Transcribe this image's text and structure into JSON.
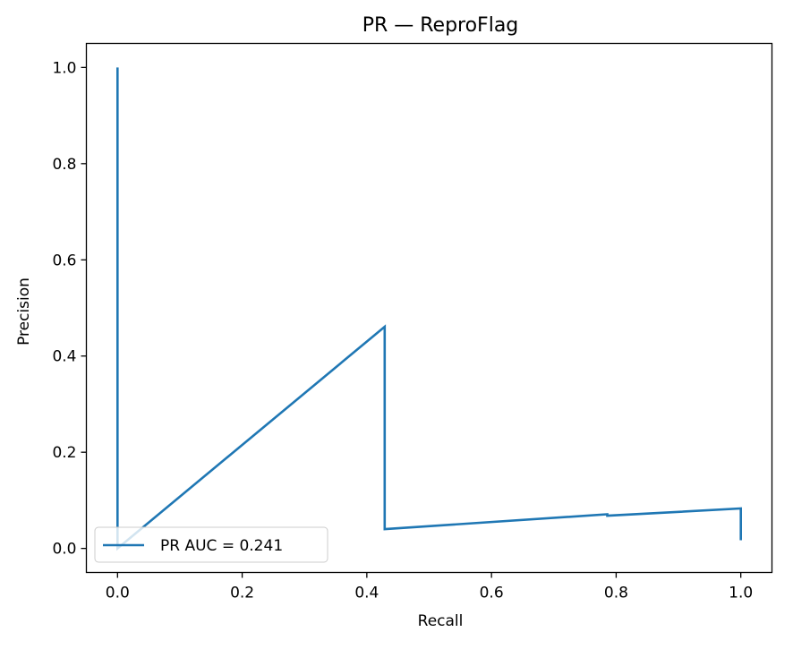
{
  "chart_data": {
    "type": "line",
    "title": "PR — ReproFlag",
    "xlabel": "Recall",
    "ylabel": "Precision",
    "xlim": [
      -0.05,
      1.05
    ],
    "ylim": [
      -0.05,
      1.05
    ],
    "xticks": [
      0.0,
      0.2,
      0.4,
      0.6,
      0.8,
      1.0
    ],
    "xtick_labels": [
      "0.0",
      "0.2",
      "0.4",
      "0.6",
      "0.8",
      "1.0"
    ],
    "yticks": [
      0.0,
      0.2,
      0.4,
      0.6,
      0.8,
      1.0
    ],
    "ytick_labels": [
      "0.0",
      "0.2",
      "0.4",
      "0.6",
      "0.8",
      "1.0"
    ],
    "grid": false,
    "legend_position": "lower-left",
    "series": [
      {
        "name": "PR AUC = 0.241",
        "color": "#1f77b4",
        "x": [
          0.0,
          0.0,
          0.0,
          0.4286,
          0.4286,
          0.7857,
          0.7857,
          1.0,
          1.0
        ],
        "y": [
          1.0,
          0.04,
          0.0,
          0.461,
          0.04,
          0.071,
          0.068,
          0.083,
          0.017
        ]
      }
    ]
  }
}
